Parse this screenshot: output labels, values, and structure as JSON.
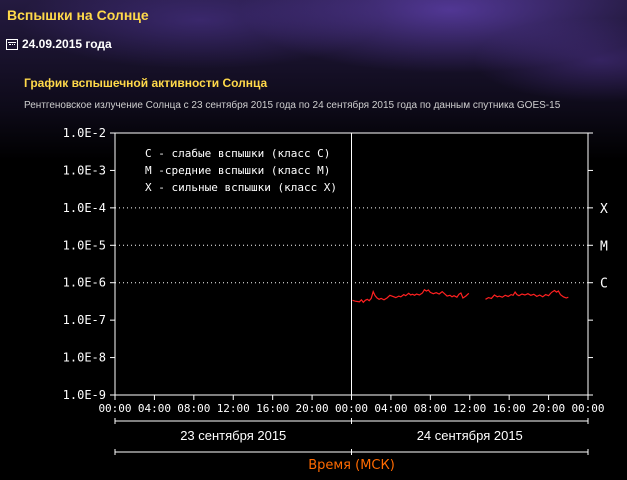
{
  "page": {
    "title": "Вспышки на Солнце",
    "date": "24.09.2015 года",
    "chart_heading": "График вспышечной активности Солнца",
    "chart_subheading": "Рентгеновское излучение Солнца с 23 сентября 2015 года по 24 сентября 2015 года по данным спутника GOES-15"
  },
  "colors": {
    "accent": "#ffd94a",
    "series": "#ff2020",
    "xlabel": "#ff6a00"
  },
  "chart_data": {
    "type": "line",
    "title": "График вспышечной активности Солнца",
    "xlabel": "Время (МСК)",
    "ylabel": "",
    "ylim": [
      1e-09,
      0.01
    ],
    "yscale": "log",
    "y_ticks": [
      "1.0E-2",
      "1.0E-3",
      "1.0E-4",
      "1.0E-5",
      "1.0E-6",
      "1.0E-7",
      "1.0E-8",
      "1.0E-9"
    ],
    "x_range_hours": [
      0,
      48
    ],
    "x_ticks": [
      "00:00",
      "04:00",
      "08:00",
      "12:00",
      "16:00",
      "20:00",
      "00:00",
      "04:00",
      "08:00",
      "12:00",
      "16:00",
      "20:00",
      "00:00"
    ],
    "day_labels": [
      "23 сентября 2015",
      "24 сентября 2015"
    ],
    "legend": [
      "С - слабые вспышки (класс С)",
      "М -средние вспышки (класс М)",
      "Х - сильные вспышки (класс Х)"
    ],
    "legend_position": "top-left",
    "class_lines": [
      {
        "label": "X",
        "value": 0.0001
      },
      {
        "label": "M",
        "value": 1e-05
      },
      {
        "label": "C",
        "value": 1e-06
      }
    ],
    "grid": false,
    "series": [
      {
        "segments": [
          [
            [
              24.1,
              3.4e-07
            ],
            [
              24.4,
              3.2e-07
            ],
            [
              24.8,
              3.1e-07
            ],
            [
              25.0,
              3.5e-07
            ],
            [
              25.2,
              3e-07
            ],
            [
              25.4,
              3.4e-07
            ],
            [
              25.6,
              3.6e-07
            ],
            [
              25.8,
              3.3e-07
            ],
            [
              26.0,
              3.8e-07
            ],
            [
              26.2,
              5.8e-07
            ],
            [
              26.4,
              4.5e-07
            ],
            [
              26.6,
              3.9e-07
            ],
            [
              26.8,
              3.6e-07
            ],
            [
              27.0,
              3.8e-07
            ],
            [
              27.3,
              3.5e-07
            ],
            [
              27.6,
              3.9e-07
            ],
            [
              27.9,
              4.6e-07
            ],
            [
              28.2,
              4.3e-07
            ],
            [
              28.5,
              4e-07
            ],
            [
              28.8,
              4.4e-07
            ],
            [
              29.0,
              4.2e-07
            ],
            [
              29.3,
              4.8e-07
            ],
            [
              29.5,
              4.5e-07
            ],
            [
              29.8,
              5.2e-07
            ],
            [
              30.0,
              4.7e-07
            ],
            [
              30.2,
              4.9e-07
            ],
            [
              30.4,
              4.6e-07
            ],
            [
              30.6,
              5e-07
            ],
            [
              30.9,
              4.7e-07
            ],
            [
              31.2,
              5.3e-07
            ],
            [
              31.4,
              6.5e-07
            ],
            [
              31.6,
              6e-07
            ],
            [
              31.8,
              6.4e-07
            ],
            [
              32.0,
              5.5e-07
            ],
            [
              32.3,
              5.1e-07
            ],
            [
              32.6,
              5.4e-07
            ],
            [
              32.9,
              5e-07
            ],
            [
              33.2,
              5.8e-07
            ],
            [
              33.4,
              5.2e-07
            ],
            [
              33.7,
              4.4e-07
            ],
            [
              34.0,
              4.6e-07
            ],
            [
              34.2,
              4.2e-07
            ],
            [
              34.4,
              4.5e-07
            ],
            [
              34.7,
              4.1e-07
            ],
            [
              34.9,
              4.9e-07
            ],
            [
              35.1,
              5.3e-07
            ],
            [
              35.3,
              3.9e-07
            ],
            [
              35.6,
              4.4e-07
            ],
            [
              35.9,
              5.2e-07
            ]
          ],
          [
            [
              37.6,
              3.6e-07
            ],
            [
              37.9,
              4e-07
            ],
            [
              38.2,
              3.8e-07
            ],
            [
              38.5,
              4.7e-07
            ],
            [
              38.8,
              4.2e-07
            ],
            [
              39.0,
              4.4e-07
            ],
            [
              39.3,
              4.1e-07
            ],
            [
              39.6,
              4.6e-07
            ],
            [
              39.9,
              4.3e-07
            ],
            [
              40.2,
              4.8e-07
            ],
            [
              40.4,
              4.6e-07
            ],
            [
              40.6,
              5.6e-07
            ],
            [
              40.8,
              4.8e-07
            ],
            [
              41.0,
              4.5e-07
            ],
            [
              41.3,
              5e-07
            ],
            [
              41.6,
              4.7e-07
            ],
            [
              41.9,
              5.1e-07
            ],
            [
              42.2,
              4.6e-07
            ],
            [
              42.5,
              4.9e-07
            ],
            [
              42.8,
              4.3e-07
            ],
            [
              43.1,
              4.7e-07
            ],
            [
              43.4,
              4.2e-07
            ],
            [
              43.7,
              4.8e-07
            ],
            [
              44.0,
              4.5e-07
            ],
            [
              44.3,
              5.5e-07
            ],
            [
              44.6,
              6.2e-07
            ],
            [
              44.8,
              5.6e-07
            ],
            [
              45.0,
              6e-07
            ],
            [
              45.2,
              4.8e-07
            ],
            [
              45.5,
              4.2e-07
            ],
            [
              45.8,
              3.9e-07
            ],
            [
              46.0,
              4.1e-07
            ]
          ]
        ]
      }
    ]
  }
}
